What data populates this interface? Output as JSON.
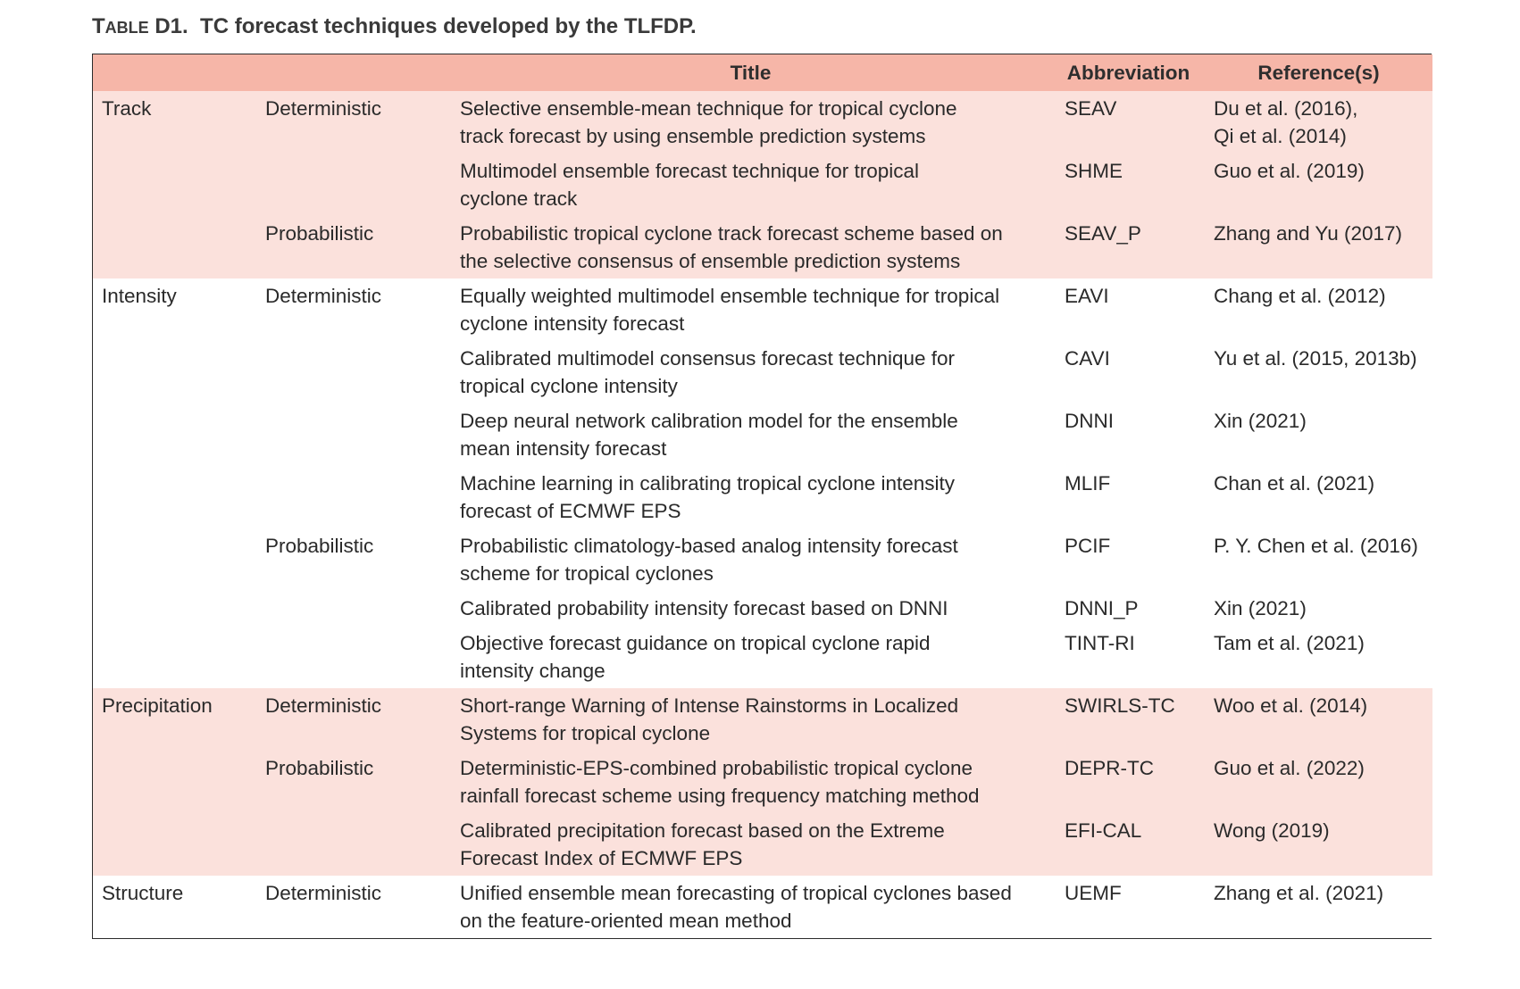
{
  "caption": {
    "label_first": "T",
    "label_rest": "ABLE",
    "number": "D1.",
    "text": "TC forecast techniques developed by the TLFDP."
  },
  "headers": {
    "category": "",
    "type": "",
    "title": "Title",
    "abbreviation": "Abbreviation",
    "references": "Reference(s)"
  },
  "rows": [
    {
      "category": "Track",
      "type": "Deterministic",
      "title": [
        "Selective ensemble-mean technique for tropical cyclone",
        "track forecast by using ensemble prediction systems"
      ],
      "abbr": "SEAV",
      "ref": [
        "Du et al. (2016),",
        "Qi et al. (2014)"
      ]
    },
    {
      "category": "",
      "type": "",
      "title": [
        "Multimodel ensemble forecast technique for tropical",
        "cyclone track"
      ],
      "abbr": "SHME",
      "ref": [
        "Guo et al. (2019)"
      ]
    },
    {
      "category": "",
      "type": "Probabilistic",
      "title": [
        "Probabilistic tropical cyclone track forecast scheme based on",
        "the selective consensus of ensemble prediction systems"
      ],
      "abbr": "SEAV_P",
      "ref": [
        "Zhang and Yu (2017)"
      ]
    },
    {
      "category": "Intensity",
      "type": "Deterministic",
      "title": [
        "Equally weighted multimodel ensemble technique for tropical",
        "cyclone intensity forecast"
      ],
      "abbr": "EAVI",
      "ref": [
        "Chang et al. (2012)"
      ]
    },
    {
      "category": "",
      "type": "",
      "title": [
        "Calibrated multimodel consensus forecast technique for",
        "tropical cyclone intensity"
      ],
      "abbr": "CAVI",
      "ref": [
        "Yu et al. (2015, 2013b)"
      ]
    },
    {
      "category": "",
      "type": "",
      "title": [
        "Deep neural network calibration model for the ensemble",
        "mean intensity forecast"
      ],
      "abbr": "DNNI",
      "ref": [
        "Xin (2021)"
      ]
    },
    {
      "category": "",
      "type": "",
      "title": [
        "Machine learning in calibrating tropical cyclone intensity",
        "forecast of ECMWF EPS"
      ],
      "abbr": "MLIF",
      "ref": [
        "Chan et al. (2021)"
      ]
    },
    {
      "category": "",
      "type": "Probabilistic",
      "title": [
        "Probabilistic climatology-based analog intensity forecast",
        "scheme for tropical cyclones"
      ],
      "abbr": "PCIF",
      "ref": [
        "P. Y. Chen et al. (2016)"
      ]
    },
    {
      "category": "",
      "type": "",
      "title": [
        "Calibrated probability intensity forecast based on DNNI"
      ],
      "abbr": "DNNI_P",
      "ref": [
        "Xin (2021)"
      ]
    },
    {
      "category": "",
      "type": "",
      "title": [
        "Objective forecast guidance on tropical cyclone rapid",
        "intensity change"
      ],
      "abbr": "TINT-RI",
      "ref": [
        "Tam et al. (2021)"
      ]
    },
    {
      "category": "Precipitation",
      "type": "Deterministic",
      "title": [
        "Short-range Warning of Intense Rainstorms in Localized",
        "Systems for tropical cyclone"
      ],
      "abbr": "SWIRLS-TC",
      "ref": [
        "Woo et al. (2014)"
      ]
    },
    {
      "category": "",
      "type": "Probabilistic",
      "title": [
        "Deterministic-EPS-combined probabilistic tropical cyclone",
        "rainfall forecast scheme using frequency matching method"
      ],
      "abbr": "DEPR-TC",
      "ref": [
        "Guo et al. (2022)"
      ]
    },
    {
      "category": "",
      "type": "",
      "title": [
        "Calibrated precipitation forecast based on the Extreme",
        "Forecast Index of ECMWF EPS"
      ],
      "abbr": "EFI-CAL",
      "ref": [
        "Wong (2019)"
      ]
    },
    {
      "category": "Structure",
      "type": "Deterministic",
      "title": [
        "Unified ensemble mean forecasting of tropical cyclones based",
        "on the feature-oriented mean method"
      ],
      "abbr": "UEMF",
      "ref": [
        "Zhang et al. (2021)"
      ]
    }
  ],
  "style": {
    "header_bg": "#f6b6a8",
    "shade_bg": "#fbe1dc",
    "text_color": "#2a2a2a"
  }
}
